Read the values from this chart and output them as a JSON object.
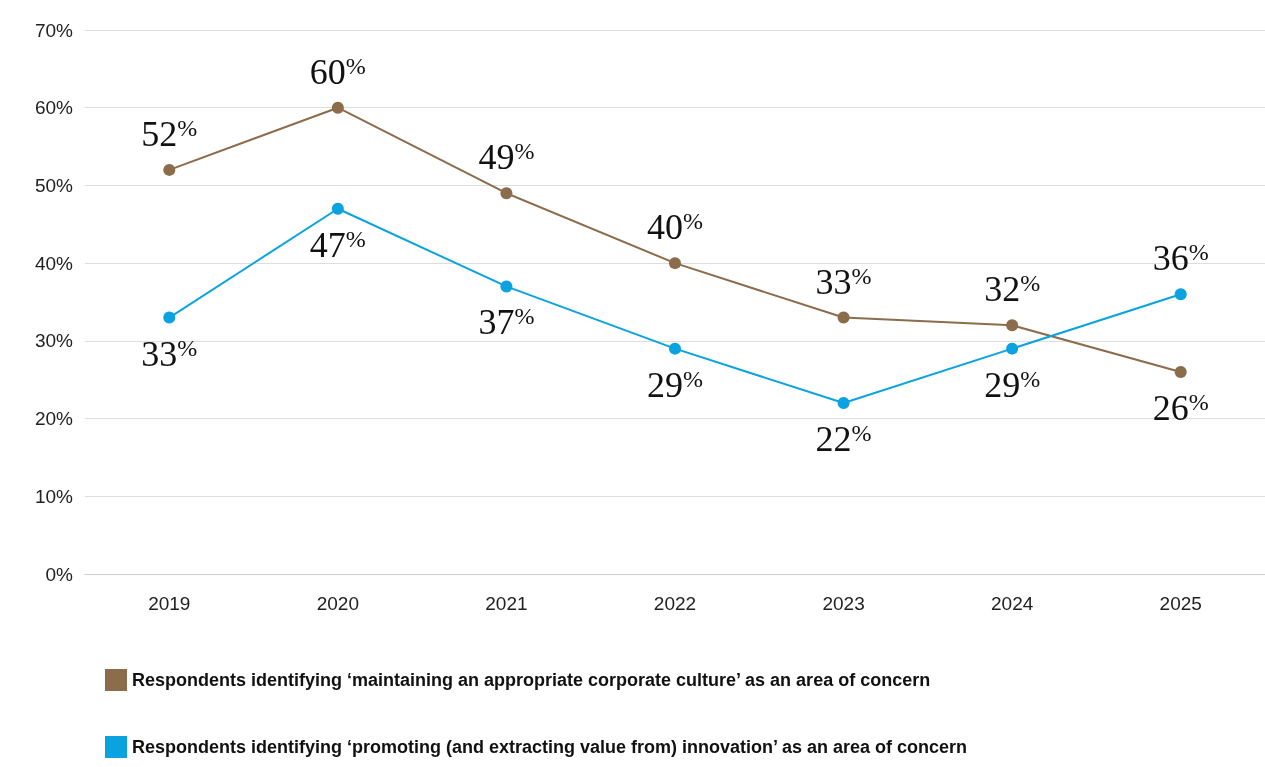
{
  "chart_data": {
    "type": "line",
    "categories": [
      "2019",
      "2020",
      "2021",
      "2022",
      "2023",
      "2024",
      "2025"
    ],
    "series": [
      {
        "name": "Respondents identifying ‘maintaining an appropriate corporate culture’ as an area of concern",
        "color": "#8b6c4b",
        "values": [
          52,
          60,
          49,
          40,
          33,
          32,
          26
        ],
        "value_labels": [
          "52%",
          "60%",
          "49%",
          "40%",
          "33%",
          "32%",
          "26%"
        ]
      },
      {
        "name": "Respondents identifying ‘promoting (and extracting value from) innovation’ as an area of concern",
        "color": "#0aa3e0",
        "values": [
          33,
          47,
          37,
          29,
          22,
          29,
          36
        ],
        "value_labels": [
          "33%",
          "47%",
          "37%",
          "29%",
          "22%",
          "29%",
          "36%"
        ]
      }
    ],
    "ylim": [
      0,
      70
    ],
    "yticks": [
      {
        "value": 0,
        "label": "0%"
      },
      {
        "value": 10,
        "label": "10%"
      },
      {
        "value": 20,
        "label": "20%"
      },
      {
        "value": 30,
        "label": "30%"
      },
      {
        "value": 40,
        "label": "40%"
      },
      {
        "value": 50,
        "label": "50%"
      },
      {
        "value": 60,
        "label": "60%"
      },
      {
        "value": 70,
        "label": "70%"
      }
    ],
    "grid": "y",
    "legend": "bottom left",
    "marker": "circle",
    "line_style": "solid"
  }
}
